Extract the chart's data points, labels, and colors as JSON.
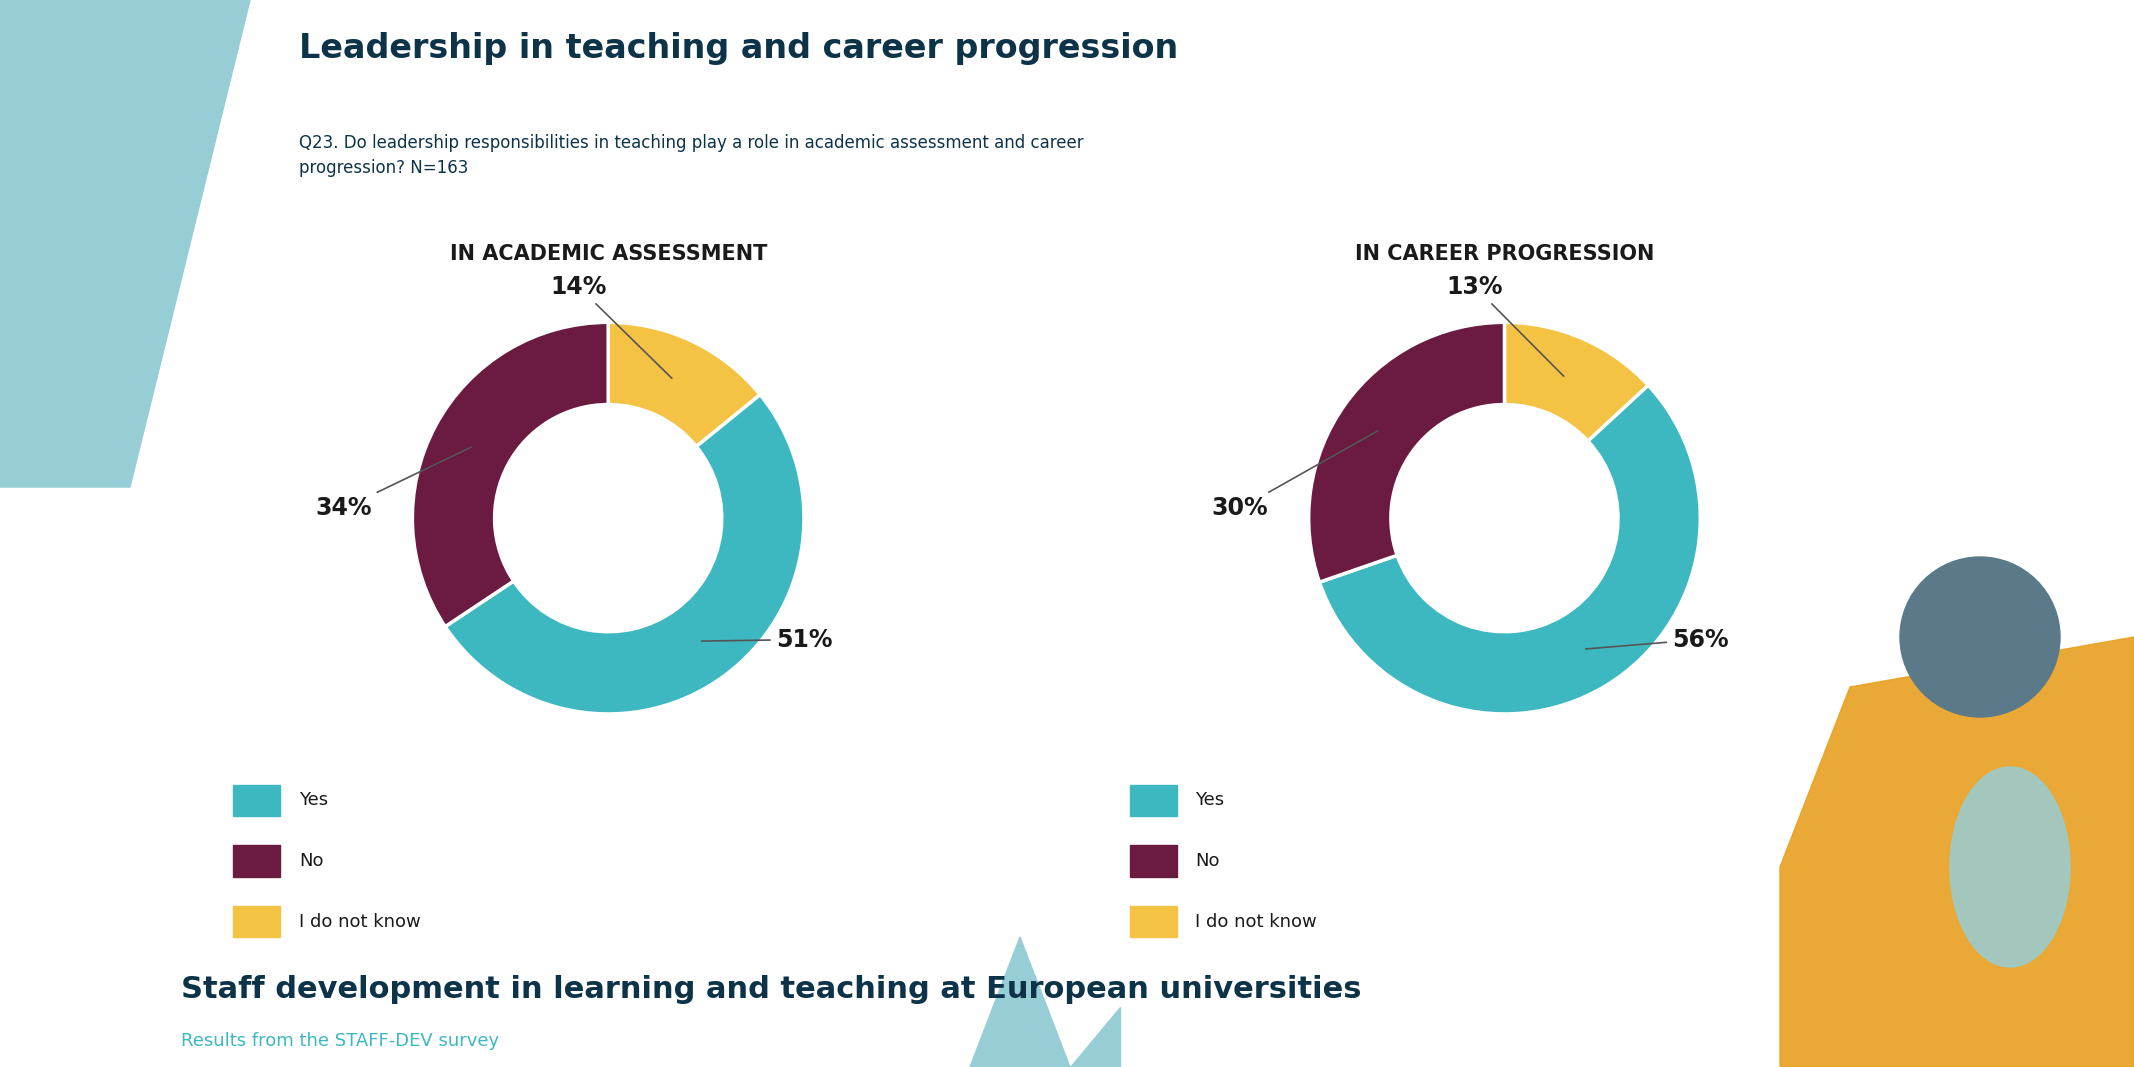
{
  "title": "Leadership in teaching and career progression",
  "subtitle": "Q23. Do leadership responsibilities in teaching play a role in academic assessment and career\nprogression? N=163",
  "chart1_title": "IN ACADEMIC ASSESSMENT",
  "chart2_title": "IN CAREER PROGRESSION",
  "chart1_values": [
    51,
    34,
    14
  ],
  "chart2_values": [
    56,
    30,
    13
  ],
  "labels": [
    "Yes",
    "No",
    "I do not know"
  ],
  "colors": [
    "#3db8c0",
    "#6b1a40",
    "#f5c344"
  ],
  "chart1_bg": "#ddeef2",
  "chart2_bg": "#f0ead8",
  "bg_color": "#ffffff",
  "title_color": "#0d3349",
  "subtitle_color": "#0d3349",
  "chart_title_color": "#1a1a1a",
  "annotation_color": "#1a1a1a",
  "legend_text_color": "#1a1a1a",
  "footer_title": "Staff development in learning and teaching at European universities",
  "footer_title_color": "#0d3349",
  "footer_subtitle": "Results from the STAFF-DEV survey",
  "footer_subtitle_color": "#3db8c0",
  "deco_teal_color": "#97cdd5",
  "deco_dark_teal": "#2a7d8c",
  "deco_orange": "#e8a020",
  "deco_slate": "#5a7a8a",
  "chart1_annots": [
    "51%",
    "34%",
    "14%"
  ],
  "chart2_annots": [
    "56%",
    "30%",
    "13%"
  ]
}
